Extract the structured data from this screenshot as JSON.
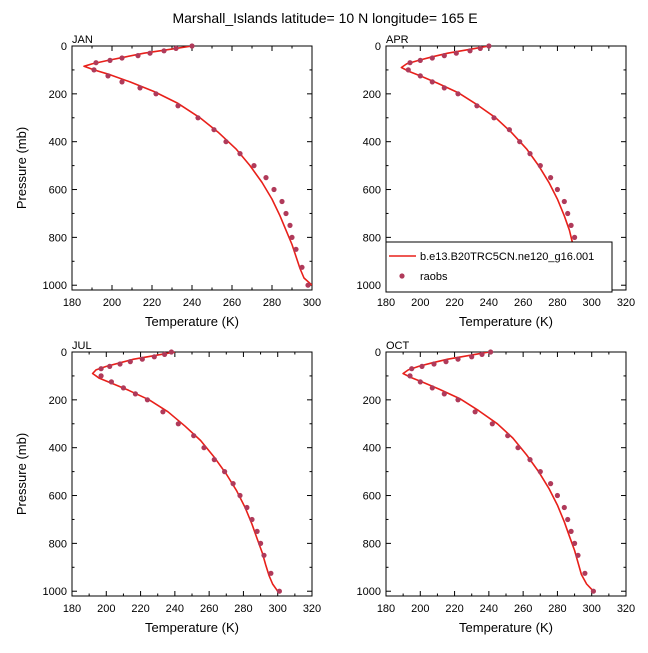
{
  "figure": {
    "title": "Marshall_Islands  latitude= 10 N longitude= 165 E"
  },
  "legend": {
    "model_label": "b.e13.B20TRC5CN.ne120_g16.001",
    "obs_label": "raobs",
    "model_color": "#e8201a",
    "obs_color": "#b03a5a"
  },
  "chart_data": [
    {
      "type": "line",
      "panel_label": "JAN",
      "xlabel": "Temperature (K)",
      "ylabel": "Pressure (mb)",
      "xlim": [
        180,
        300
      ],
      "ylim": [
        1020,
        0
      ],
      "x_ticks": [
        180,
        200,
        220,
        240,
        260,
        280,
        300
      ],
      "y_ticks": [
        0,
        200,
        400,
        600,
        800,
        1000
      ],
      "series": [
        {
          "name": "b.e13.B20TRC5CN.ne120_g16.001",
          "kind": "line",
          "x": [
            240,
            232,
            224,
            216,
            207,
            198,
            190,
            186,
            191,
            199,
            209,
            221,
            233,
            244,
            253,
            262,
            269,
            275,
            280,
            284,
            287,
            290,
            292,
            294,
            296,
            300
          ],
          "y": [
            0,
            10,
            20,
            30,
            45,
            60,
            75,
            85,
            100,
            120,
            150,
            190,
            240,
            300,
            360,
            430,
            500,
            570,
            640,
            710,
            770,
            830,
            880,
            930,
            970,
            1000
          ]
        },
        {
          "name": "raobs",
          "kind": "points",
          "x": [
            240,
            232,
            226,
            219,
            213,
            205,
            199,
            192,
            191,
            198,
            205,
            214,
            222,
            233,
            243,
            251,
            257,
            264,
            271,
            277,
            281,
            285,
            287,
            289,
            290,
            292,
            295,
            298
          ],
          "y": [
            0,
            10,
            20,
            30,
            40,
            50,
            60,
            70,
            100,
            125,
            150,
            175,
            200,
            250,
            300,
            350,
            400,
            450,
            500,
            550,
            600,
            650,
            700,
            750,
            800,
            850,
            925,
            1000
          ]
        }
      ]
    },
    {
      "type": "line",
      "panel_label": "APR",
      "xlabel": "Temperature (K)",
      "ylabel": "",
      "xlim": [
        180,
        320
      ],
      "ylim": [
        1020,
        0
      ],
      "x_ticks": [
        180,
        200,
        220,
        240,
        260,
        280,
        300,
        320
      ],
      "y_ticks": [
        0,
        200,
        400,
        600,
        800,
        1000
      ],
      "series": [
        {
          "name": "b.e13.B20TRC5CN.ne120_g16.001",
          "kind": "line",
          "x": [
            240,
            232,
            224,
            216,
            207,
            199,
            192,
            189,
            193,
            200,
            210,
            222,
            233,
            244,
            253,
            262,
            269,
            275,
            280,
            284,
            287,
            289,
            291,
            293,
            296,
            300
          ],
          "y": [
            0,
            10,
            20,
            30,
            45,
            60,
            75,
            90,
            105,
            125,
            155,
            195,
            245,
            300,
            360,
            430,
            500,
            570,
            640,
            710,
            770,
            830,
            880,
            930,
            970,
            1000
          ]
        },
        {
          "name": "raobs",
          "kind": "points",
          "x": [
            240,
            235,
            229,
            221,
            214,
            207,
            200,
            194,
            193,
            200,
            207,
            214,
            222,
            233,
            243,
            252,
            258,
            264,
            270,
            276,
            280,
            284,
            286,
            288,
            290,
            292,
            295,
            300
          ],
          "y": [
            0,
            10,
            20,
            30,
            40,
            50,
            60,
            70,
            100,
            125,
            150,
            175,
            200,
            250,
            300,
            350,
            400,
            450,
            500,
            550,
            600,
            650,
            700,
            750,
            800,
            850,
            925,
            1000
          ]
        }
      ]
    },
    {
      "type": "line",
      "panel_label": "JUL",
      "xlabel": "Temperature (K)",
      "ylabel": "Pressure (mb)",
      "xlim": [
        180,
        320
      ],
      "ylim": [
        1020,
        0
      ],
      "x_ticks": [
        180,
        200,
        220,
        240,
        260,
        280,
        300,
        320
      ],
      "y_ticks": [
        0,
        200,
        400,
        600,
        800,
        1000
      ],
      "series": [
        {
          "name": "b.e13.B20TRC5CN.ne120_g16.001",
          "kind": "line",
          "x": [
            240,
            232,
            224,
            216,
            208,
            200,
            194,
            192,
            196,
            203,
            213,
            225,
            236,
            246,
            255,
            263,
            270,
            276,
            281,
            285,
            288,
            291,
            293,
            295,
            297,
            300
          ],
          "y": [
            0,
            10,
            20,
            30,
            45,
            60,
            75,
            90,
            110,
            130,
            160,
            200,
            250,
            310,
            370,
            440,
            510,
            580,
            650,
            720,
            780,
            840,
            890,
            935,
            970,
            1000
          ]
        },
        {
          "name": "raobs",
          "kind": "points",
          "x": [
            238,
            234,
            228,
            221,
            214,
            208,
            202,
            197,
            197,
            203,
            210,
            217,
            224,
            233,
            242,
            251,
            257,
            263,
            269,
            274,
            278,
            282,
            285,
            288,
            290,
            292,
            296,
            301
          ],
          "y": [
            0,
            10,
            20,
            30,
            40,
            50,
            60,
            70,
            100,
            125,
            150,
            175,
            200,
            250,
            300,
            350,
            400,
            450,
            500,
            550,
            600,
            650,
            700,
            750,
            800,
            850,
            925,
            1000
          ]
        }
      ]
    },
    {
      "type": "line",
      "panel_label": "OCT",
      "xlabel": "Temperature (K)",
      "ylabel": "",
      "xlim": [
        180,
        320
      ],
      "ylim": [
        1020,
        0
      ],
      "x_ticks": [
        180,
        200,
        220,
        240,
        260,
        280,
        300,
        320
      ],
      "y_ticks": [
        0,
        200,
        400,
        600,
        800,
        1000
      ],
      "series": [
        {
          "name": "b.e13.B20TRC5CN.ne120_g16.001",
          "kind": "line",
          "x": [
            240,
            232,
            224,
            216,
            207,
            199,
            193,
            190,
            194,
            201,
            211,
            223,
            234,
            245,
            254,
            262,
            269,
            275,
            280,
            284,
            287,
            290,
            292,
            294,
            297,
            301
          ],
          "y": [
            0,
            10,
            20,
            30,
            45,
            60,
            75,
            90,
            105,
            125,
            155,
            195,
            245,
            300,
            360,
            430,
            500,
            570,
            640,
            710,
            770,
            830,
            880,
            930,
            970,
            1000
          ]
        },
        {
          "name": "raobs",
          "kind": "points",
          "x": [
            241,
            236,
            230,
            222,
            215,
            208,
            201,
            195,
            194,
            200,
            207,
            214,
            222,
            232,
            242,
            251,
            257,
            264,
            270,
            276,
            280,
            284,
            286,
            288,
            290,
            292,
            296,
            301
          ],
          "y": [
            0,
            10,
            20,
            30,
            40,
            50,
            60,
            70,
            100,
            125,
            150,
            175,
            200,
            250,
            300,
            350,
            400,
            450,
            500,
            550,
            600,
            650,
            700,
            750,
            800,
            850,
            925,
            1000
          ]
        }
      ]
    }
  ]
}
